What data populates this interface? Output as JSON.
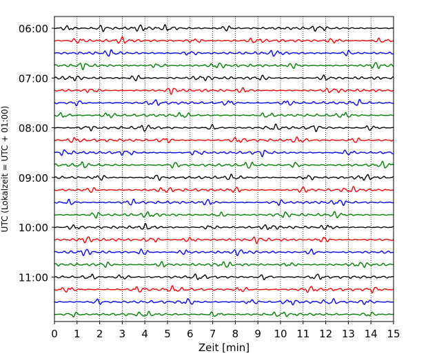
{
  "chart_data": {
    "type": "line",
    "title": "",
    "xlabel": "Zeit  [min]",
    "ylabel": "UTC (Lokalzeit = UTC + 01:00)",
    "xlim": [
      0,
      15
    ],
    "x_ticks": [
      0,
      1,
      2,
      3,
      4,
      5,
      6,
      7,
      8,
      9,
      10,
      11,
      12,
      13,
      14,
      15
    ],
    "grid": "vertical dotted",
    "legend": "none",
    "hour_labels": [
      {
        "label": "06:00",
        "row": 0
      },
      {
        "label": "07:00",
        "row": 4
      },
      {
        "label": "08:00",
        "row": 8
      },
      {
        "label": "09:00",
        "row": 12
      },
      {
        "label": "10:00",
        "row": 16
      },
      {
        "label": "11:00",
        "row": 20
      }
    ],
    "row_minutes": 15,
    "row_count": 24,
    "row_colors": [
      "#000000",
      "#ff0000",
      "#0000ff",
      "#008000"
    ],
    "series": [
      {
        "start": "06:00",
        "color": "#000000",
        "bursts": [
          0.6,
          2.1,
          3.8,
          5.0,
          7.6,
          11.7
        ]
      },
      {
        "start": "06:15",
        "color": "#ff0000",
        "bursts": [
          1.1,
          3.0,
          6.2,
          8.9,
          12.4,
          14.5
        ]
      },
      {
        "start": "06:30",
        "color": "#0000ff",
        "bursts": [
          2.5,
          6.0,
          9.8,
          13.0
        ]
      },
      {
        "start": "06:45",
        "color": "#008000",
        "bursts": [
          1.3,
          4.6,
          7.2,
          10.6,
          14.2
        ]
      },
      {
        "start": "07:00",
        "color": "#000000",
        "bursts": [
          0.8,
          3.6,
          6.5,
          9.1,
          12.0
        ]
      },
      {
        "start": "07:15",
        "color": "#ff0000",
        "bursts": [
          1.7,
          5.2,
          8.4,
          12.3
        ]
      },
      {
        "start": "07:30",
        "color": "#0000ff",
        "bursts": [
          1.0,
          4.4,
          7.7,
          10.3,
          13.4
        ]
      },
      {
        "start": "07:45",
        "color": "#008000",
        "bursts": [
          0.4,
          2.4,
          5.7,
          9.4,
          12.8
        ]
      },
      {
        "start": "08:00",
        "color": "#000000",
        "bursts": [
          1.5,
          4.0,
          7.0,
          9.7,
          11.5,
          14.0
        ]
      },
      {
        "start": "08:15",
        "color": "#ff0000",
        "bursts": [
          0.9,
          4.9,
          8.1,
          10.8,
          13.3
        ]
      },
      {
        "start": "08:30",
        "color": "#0000ff",
        "bursts": [
          0.5,
          3.2,
          6.3,
          9.2,
          13.0
        ]
      },
      {
        "start": "08:45",
        "color": "#008000",
        "bursts": [
          1.2,
          5.3,
          8.6,
          10.7,
          14.6
        ]
      },
      {
        "start": "09:00",
        "color": "#000000",
        "bursts": [
          2.0,
          4.5,
          7.9,
          11.2,
          13.7
        ]
      },
      {
        "start": "09:15",
        "color": "#ff0000",
        "bursts": [
          1.6,
          4.9,
          8.0,
          11.0,
          13.1
        ]
      },
      {
        "start": "09:30",
        "color": "#0000ff",
        "bursts": [
          0.7,
          3.4,
          6.8,
          9.9,
          12.6
        ]
      },
      {
        "start": "09:45",
        "color": "#008000",
        "bursts": [
          1.8,
          4.2,
          7.3,
          10.1,
          12.5
        ]
      },
      {
        "start": "10:00",
        "color": "#000000",
        "bursts": [
          0.9,
          4.1,
          6.9,
          9.5,
          12.1
        ]
      },
      {
        "start": "10:15",
        "color": "#ff0000",
        "bursts": [
          1.4,
          4.3,
          6.0,
          9.0,
          11.9
        ]
      },
      {
        "start": "10:30",
        "color": "#0000ff",
        "bursts": [
          1.3,
          3.9,
          5.8,
          8.2,
          11.4
        ]
      },
      {
        "start": "10:45",
        "color": "#008000",
        "bursts": [
          2.2,
          4.8,
          7.5,
          10.4,
          13.5
        ]
      },
      {
        "start": "11:00",
        "color": "#000000",
        "bursts": [
          1.6,
          3.0,
          6.4,
          9.3,
          11.6
        ]
      },
      {
        "start": "11:15",
        "color": "#ff0000",
        "bursts": [
          0.6,
          3.7,
          5.3,
          8.3,
          11.3,
          14.1
        ]
      },
      {
        "start": "11:30",
        "color": "#0000ff",
        "bursts": [
          1.9,
          5.9,
          8.7,
          10.4,
          12.2,
          13.8
        ]
      },
      {
        "start": "11:45",
        "color": "#008000",
        "bursts": [
          0.8,
          4.0,
          7.1,
          10.0,
          13.9
        ]
      }
    ]
  }
}
